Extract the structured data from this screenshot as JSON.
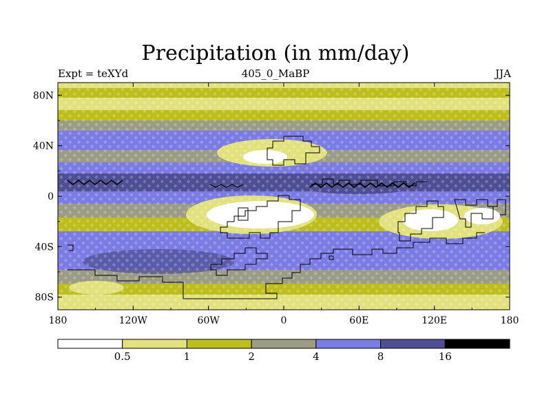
{
  "chart_data": {
    "type": "heatmap",
    "title": "Precipitation (in mm/day)",
    "subtitle_left": "Expt = teXYd",
    "subtitle_center": "405_0_MaBP",
    "subtitle_right": "JJA",
    "x_ticks": [
      {
        "value": -180,
        "label": "180"
      },
      {
        "value": -120,
        "label": "120W"
      },
      {
        "value": -60,
        "label": "60W"
      },
      {
        "value": 0,
        "label": "0"
      },
      {
        "value": 60,
        "label": "60E"
      },
      {
        "value": 120,
        "label": "120E"
      },
      {
        "value": 180,
        "label": "180"
      }
    ],
    "y_ticks": [
      {
        "value": 80,
        "label": "80N"
      },
      {
        "value": 40,
        "label": "40N"
      },
      {
        "value": 0,
        "label": "0"
      },
      {
        "value": -40,
        "label": "40S"
      },
      {
        "value": -80,
        "label": "80S"
      }
    ],
    "xlim": [
      -180,
      180
    ],
    "ylim": [
      -90,
      90
    ],
    "colorbar": {
      "levels": [
        "0.5",
        "1",
        "2",
        "4",
        "8",
        "16"
      ],
      "colors": [
        "#ffffff",
        "#e1e17d",
        "#bdbd1c",
        "#9b9b86",
        "#7b7be4",
        "#4e4e94",
        "#000000"
      ]
    }
  }
}
